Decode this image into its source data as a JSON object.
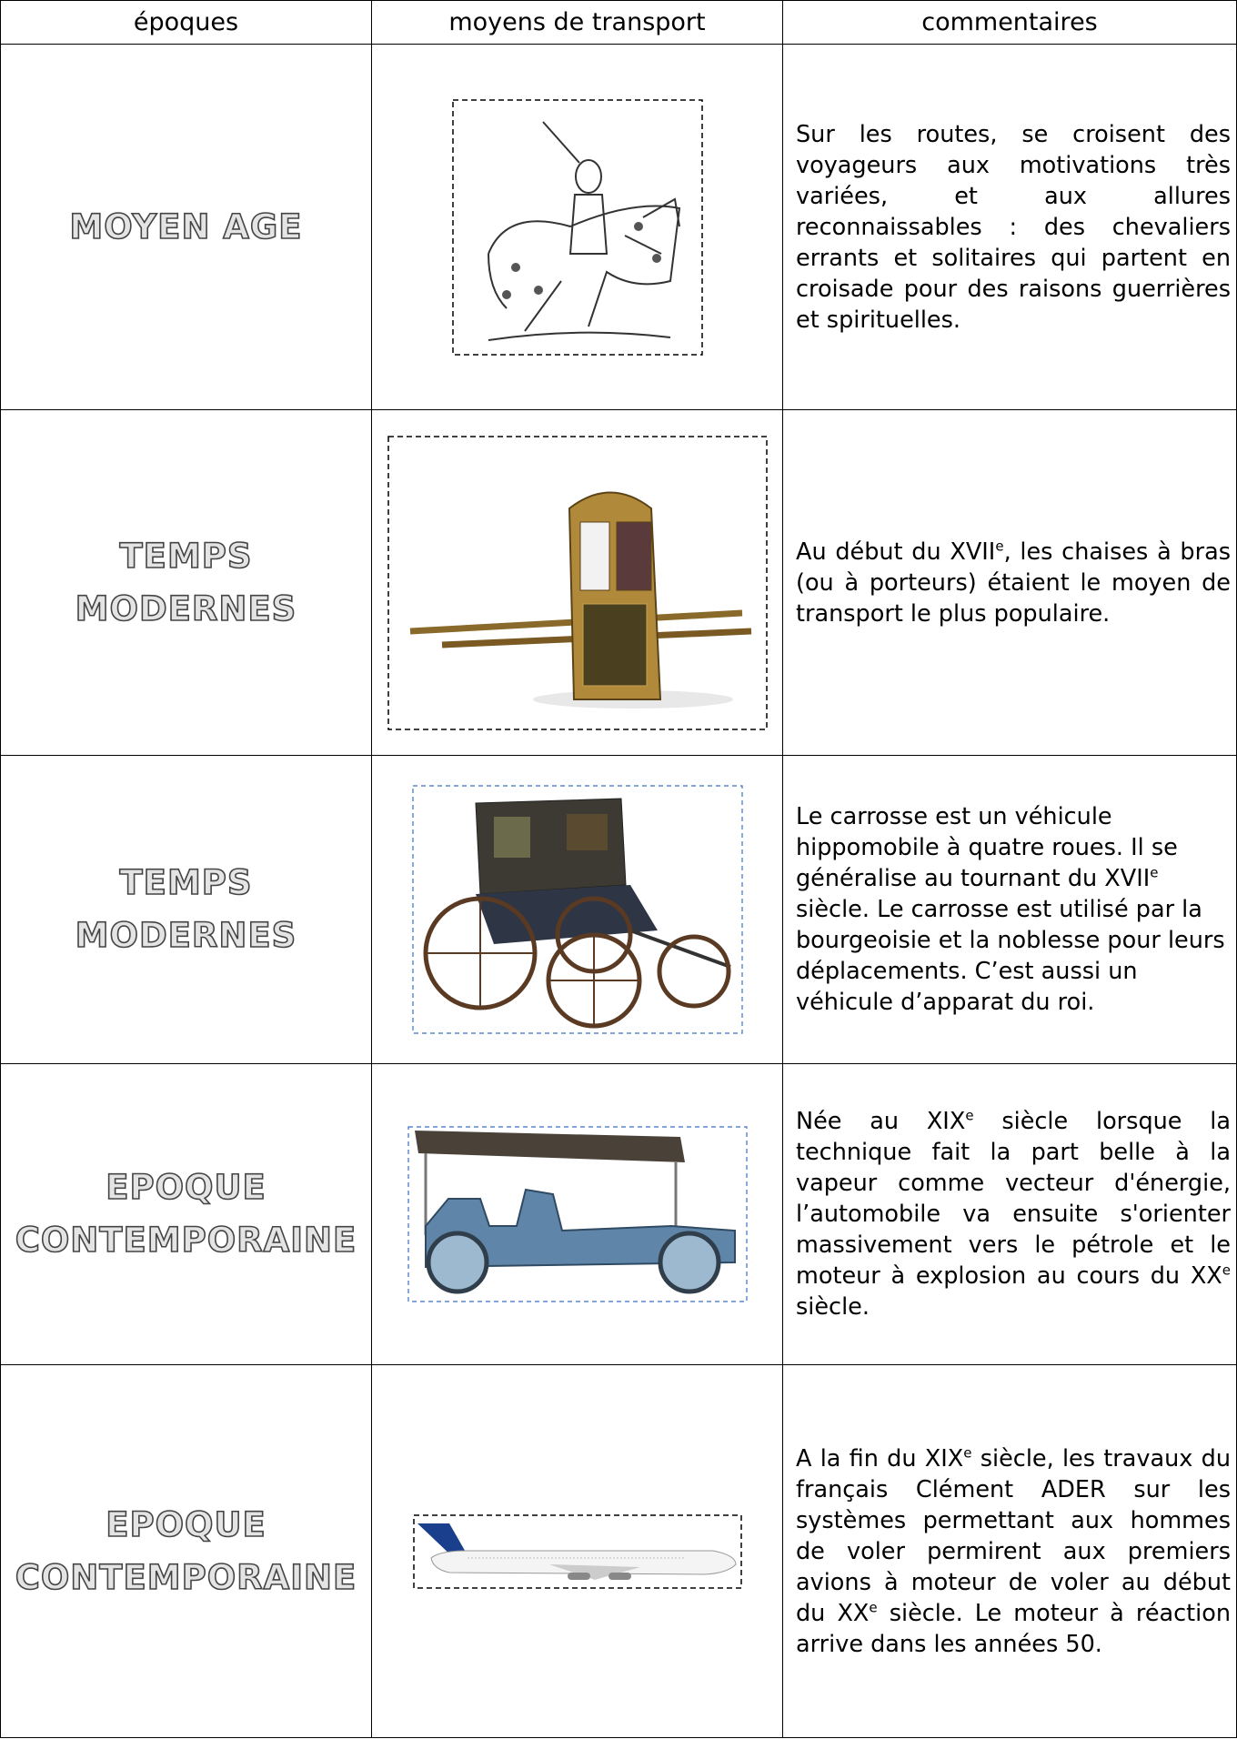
{
  "table": {
    "header": [
      "époques",
      "moyens de transport",
      "commentaires"
    ],
    "rows": [
      {
        "epoch": [
          "MOYEN AGE"
        ],
        "comment": [
          {
            "text": "Sur les routes, se croisent des voyageurs aux motivations très variées, et aux allures reconnaissables : des chevaliers errants et solitaires qui partent en croisade pour des raisons guerrières et spirituelles."
          }
        ]
      },
      {
        "epoch": [
          "TEMPS",
          "MODERNES"
        ],
        "comment": [
          {
            "text": "Au début du XVII"
          },
          {
            "sup": "e"
          },
          {
            "text": ", les chaises à bras (ou à porteurs) étaient le moyen de transport le plus populaire."
          }
        ]
      },
      {
        "epoch": [
          "TEMPS",
          "MODERNES"
        ],
        "comment": [
          {
            "text": "Le carrosse est un véhicule hippomobile à quatre roues. Il se généralise au tournant du XVII"
          },
          {
            "sup": "e"
          },
          {
            "text": " siècle. Le carrosse  est utilisé par la bourgeoisie et la noblesse pour leurs déplacements. C’est aussi un véhicule d’apparat du roi."
          }
        ]
      },
      {
        "epoch": [
          "EPOQUE",
          "CONTEMPORAINE"
        ],
        "comment": [
          {
            "text": "Née au XIX"
          },
          {
            "sup": "e"
          },
          {
            "text": " siècle lorsque la technique fait la part belle à la vapeur comme vecteur d'énergie, l’automobile va ensuite s'orienter massivement vers le pétrole et le moteur à explosion au cours du XX"
          },
          {
            "sup": "e"
          },
          {
            "text": " siècle."
          }
        ]
      },
      {
        "epoch": [
          "EPOQUE",
          "CONTEMPORAINE"
        ],
        "comment": [
          {
            "text": "A la fin du XIX"
          },
          {
            "sup": "e"
          },
          {
            "text": " siècle, les travaux du français Clément ADER sur les systèmes permettant aux hommes de voler permirent aux premiers avions à moteur de voler  au début du XX"
          },
          {
            "sup": "e"
          },
          {
            "text": " siècle. Le moteur à réaction arrive dans les années 50."
          }
        ]
      }
    ]
  }
}
